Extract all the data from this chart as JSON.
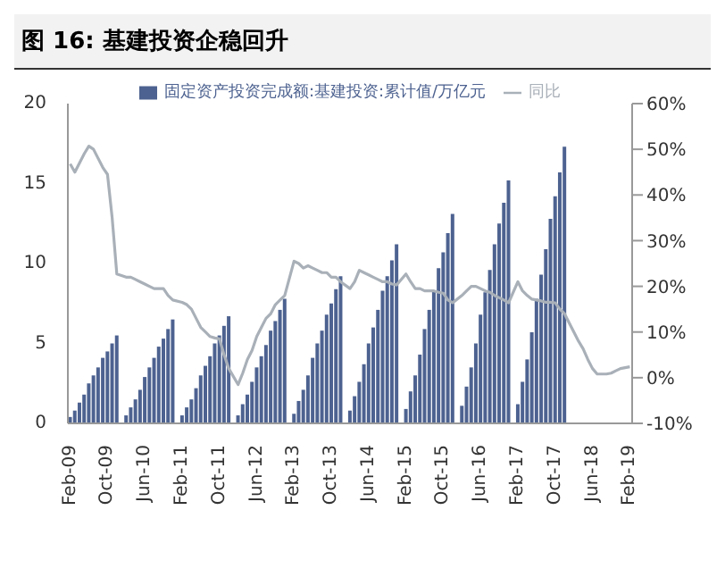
{
  "chart_data": {
    "type": "bar",
    "title": "图 16: 基建投资企稳回升",
    "legend": "top",
    "categories": [
      "Feb-09",
      null,
      null,
      null,
      null,
      null,
      null,
      null,
      "Oct-09",
      null,
      null,
      null,
      null,
      null,
      null,
      null,
      "Jun-10",
      null,
      null,
      null,
      null,
      null,
      null,
      null,
      "Feb-11",
      null,
      null,
      null,
      null,
      null,
      null,
      null,
      "Oct-11",
      null,
      null,
      null,
      null,
      null,
      null,
      null,
      "Jun-12",
      null,
      null,
      null,
      null,
      null,
      null,
      null,
      "Feb-13",
      null,
      null,
      null,
      null,
      null,
      null,
      null,
      "Oct-13",
      null,
      null,
      null,
      null,
      null,
      null,
      null,
      "Jun-14",
      null,
      null,
      null,
      null,
      null,
      null,
      null,
      "Feb-15",
      null,
      null,
      null,
      null,
      null,
      null,
      null,
      "Oct-15",
      null,
      null,
      null,
      null,
      null,
      null,
      null,
      "Jun-16",
      null,
      null,
      null,
      null,
      null,
      null,
      null,
      "Feb-17",
      null,
      null,
      null,
      null,
      null,
      null,
      null,
      "Oct-17",
      null,
      null,
      null,
      null,
      null,
      null,
      null,
      "Jun-18",
      null,
      null,
      null,
      null,
      null,
      null,
      null,
      "Feb-19"
    ],
    "series": [
      {
        "name": "固定资产投资完成额:基建投资:累计值/万亿元",
        "color": "#4d6290",
        "values": [
          0.4,
          0.8,
          1.3,
          1.8,
          2.5,
          3.0,
          3.5,
          4.1,
          4.5,
          5.0,
          5.5,
          null,
          0.5,
          1.0,
          1.5,
          2.1,
          2.9,
          3.5,
          4.1,
          4.8,
          5.3,
          5.9,
          6.5,
          null,
          0.5,
          1.0,
          1.5,
          2.2,
          3.0,
          3.6,
          4.2,
          5.0,
          5.5,
          6.1,
          6.7,
          null,
          0.5,
          1.2,
          1.8,
          2.6,
          3.5,
          4.2,
          4.9,
          5.8,
          6.4,
          7.1,
          7.8,
          null,
          0.6,
          1.4,
          2.1,
          3.0,
          4.1,
          5.0,
          5.8,
          6.8,
          7.5,
          8.4,
          9.2,
          null,
          0.8,
          1.7,
          2.6,
          3.7,
          5.0,
          6.0,
          7.1,
          8.3,
          9.2,
          10.2,
          11.2,
          null,
          0.9,
          2.0,
          3.0,
          4.3,
          5.9,
          7.1,
          8.3,
          9.7,
          10.7,
          11.9,
          13.1,
          null,
          1.1,
          2.3,
          3.5,
          5.0,
          6.8,
          8.2,
          9.6,
          11.2,
          12.5,
          13.8,
          15.2,
          null,
          1.2,
          2.6,
          4.0,
          5.7,
          7.8,
          9.3,
          10.9,
          12.8,
          14.2,
          15.7,
          17.3,
          null,
          null,
          null,
          null,
          null,
          null,
          null,
          null,
          null,
          null,
          null,
          null,
          null,
          null
        ]
      },
      {
        "name": "同比",
        "type": "line",
        "axis": "y2",
        "color": "#a9b0b8",
        "values": [
          46.8,
          45,
          47,
          49,
          50.7,
          50,
          48,
          46,
          44.5,
          35,
          22.7,
          null,
          22,
          22,
          21.5,
          21,
          20.5,
          20,
          19.5,
          19.5,
          19.5,
          18,
          17,
          null,
          16.5,
          16,
          15,
          13,
          11,
          10,
          9,
          8.7,
          8.5,
          5,
          2,
          null,
          -1.5,
          1,
          4,
          6,
          9,
          11,
          13,
          14,
          16,
          17,
          18,
          null,
          25.5,
          25,
          24,
          24.5,
          24,
          23.5,
          23,
          23,
          22,
          22,
          21,
          null,
          19.5,
          21,
          23.5,
          23,
          22.5,
          22,
          21.5,
          21,
          21,
          20.5,
          20.3,
          null,
          22.7,
          21,
          19.5,
          19.5,
          19,
          19,
          19,
          18.7,
          18.5,
          17,
          16.4,
          null,
          18,
          19,
          20,
          20,
          19.5,
          19,
          18.7,
          18,
          17.5,
          17,
          16.4,
          null,
          21,
          19,
          18,
          17.2,
          17,
          16.8,
          16.5,
          16.5,
          16.4,
          15,
          14,
          null,
          10,
          8,
          6.3,
          4,
          2,
          0.8,
          0.8,
          0.8,
          1,
          1.5,
          2,
          null,
          2.4
        ]
      }
    ],
    "ylim": [
      0,
      20
    ],
    "yticks": [
      0,
      5,
      10,
      15,
      20
    ],
    "y2lim": [
      -10,
      60
    ],
    "y2ticks": [
      {
        "value": -10,
        "label": "-10%"
      },
      {
        "value": 0,
        "label": "0%"
      },
      {
        "value": 10,
        "label": "10%"
      },
      {
        "value": 20,
        "label": "20%"
      },
      {
        "value": 30,
        "label": "30%"
      },
      {
        "value": 40,
        "label": "40%"
      },
      {
        "value": 50,
        "label": "50%"
      },
      {
        "value": 60,
        "label": "60%"
      }
    ]
  }
}
